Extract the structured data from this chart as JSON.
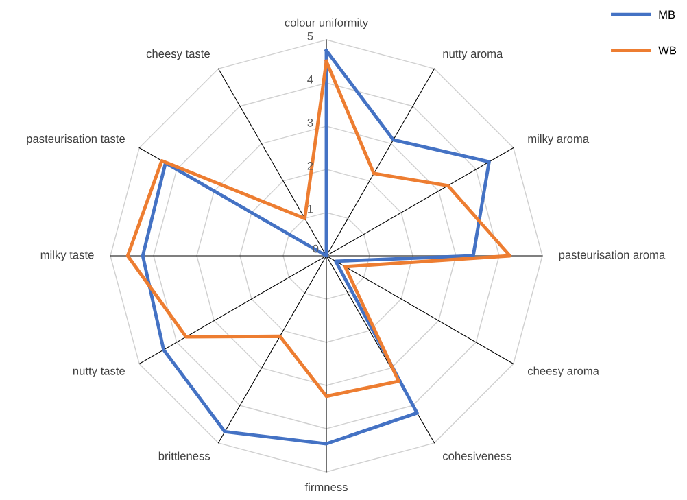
{
  "chart_data": {
    "type": "radar",
    "categories": [
      "colour uniformity",
      "nutty aroma",
      "milky aroma",
      "pasteurisation aroma",
      "cheesy aroma",
      "cohesiveness",
      "firmness",
      "brittleness",
      "nutty taste",
      "milky taste",
      "pasteurisation taste",
      "cheesy taste"
    ],
    "series": [
      {
        "name": "MB",
        "color": "#4472c4",
        "values": [
          4.75,
          3.1,
          4.35,
          3.4,
          0.25,
          4.2,
          4.35,
          4.7,
          4.35,
          4.25,
          4.3,
          0
        ]
      },
      {
        "name": "WB",
        "color": "#ed7d31",
        "values": [
          4.5,
          2.2,
          3.25,
          4.25,
          0.5,
          3.35,
          3.25,
          2.15,
          3.75,
          4.6,
          4.4,
          1
        ]
      }
    ],
    "ylim": [
      0,
      5
    ],
    "yticks": [
      0,
      1,
      2,
      3,
      4,
      5
    ],
    "grid": true,
    "legend": "top right"
  }
}
